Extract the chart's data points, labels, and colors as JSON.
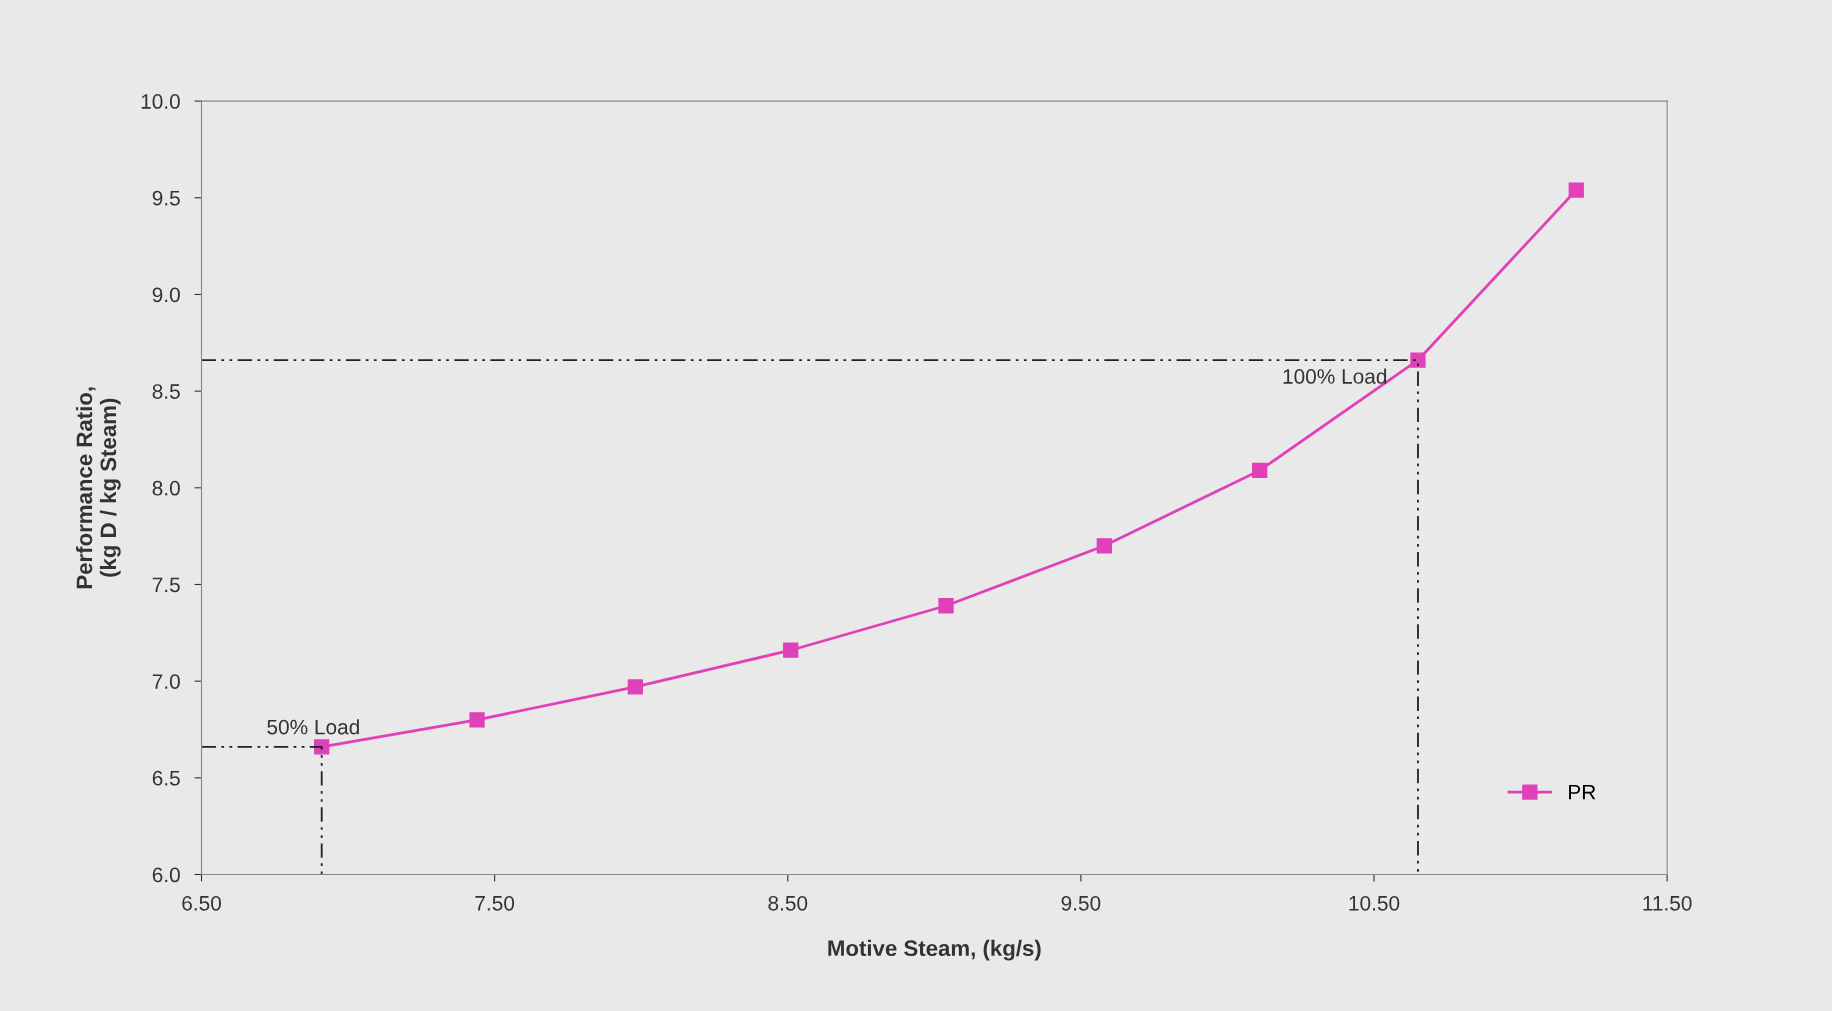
{
  "chart_data": {
    "type": "line",
    "xlabel": "Motive Steam, (kg/s)",
    "ylabel": "Performance Ratio,\n(kg D / kg Steam)",
    "series": [
      {
        "name": "PR",
        "color": "#e040b8",
        "marker": "square",
        "x": [
          6.91,
          7.44,
          7.98,
          8.51,
          9.04,
          9.58,
          10.11,
          10.65,
          11.19
        ],
        "values": [
          6.66,
          6.8,
          6.97,
          7.16,
          7.39,
          7.7,
          8.09,
          8.66,
          9.54
        ]
      },
      {
        "type": "line",
        "color": "#202020",
        "line_style": "dashed",
        "marker": "none",
        "x": [
          6.5,
          10.65,
          10.65
        ],
        "values": [
          8.66,
          8.66,
          6.0
        ]
      },
      {
        "type": "line",
        "color": "#202020",
        "line_style": "dashed",
        "marker": "none",
        "x": [
          6.5,
          6.91,
          6.91
        ],
        "values": [
          6.66,
          6.66,
          6.0
        ]
      }
    ],
    "annotations": [
      {
        "text": "100% Load",
        "x": 10.65,
        "y": 8.66
      },
      {
        "text": "50% Load",
        "x": 6.91,
        "y": 6.66
      }
    ],
    "xlim": [
      6.5,
      11.5
    ],
    "xticks": [
      {
        "value": 6.5,
        "label": "6.50"
      },
      {
        "value": 7.5,
        "label": "7.50"
      },
      {
        "value": 8.5,
        "label": "8.50"
      },
      {
        "value": 9.5,
        "label": "9.50"
      },
      {
        "value": 10.5,
        "label": "10.50"
      },
      {
        "value": 11.5,
        "label": "11.50"
      }
    ],
    "ylim": [
      6.0,
      10.0
    ],
    "yticks": [
      {
        "value": 6.0,
        "label": "6.0"
      },
      {
        "value": 6.5,
        "label": "6.5"
      },
      {
        "value": 7.0,
        "label": "7.0"
      },
      {
        "value": 7.5,
        "label": "7.5"
      },
      {
        "value": 8.0,
        "label": "8.0"
      },
      {
        "value": 8.5,
        "label": "8.5"
      },
      {
        "value": 9.0,
        "label": "9.0"
      },
      {
        "value": 9.5,
        "label": "9.5"
      },
      {
        "value": 10.0,
        "label": "10.0"
      }
    ],
    "grid": false,
    "legend": "bottom right"
  }
}
